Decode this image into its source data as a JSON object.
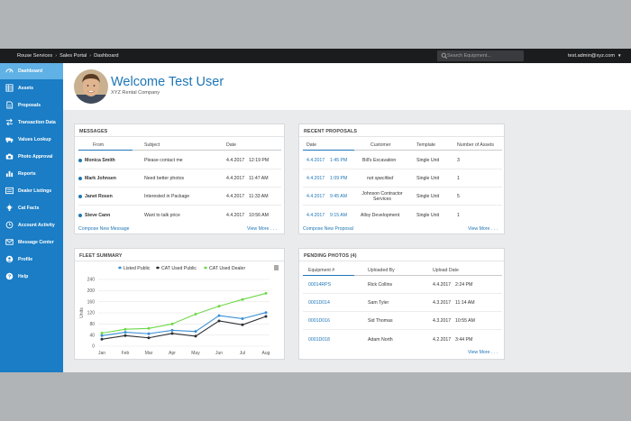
{
  "topbar": {
    "crumbs": [
      "Rouse Services",
      "Sales Portal",
      "Dashboard"
    ],
    "search_placeholder": "Search Equipment...",
    "user": "test.admin@xyz.com"
  },
  "sidebar": {
    "items": [
      {
        "label": "Dashboard",
        "icon": "speedometer-icon",
        "active": true
      },
      {
        "label": "Assets",
        "icon": "grid-icon",
        "active": false
      },
      {
        "label": "Proposals",
        "icon": "document-icon",
        "active": false
      },
      {
        "label": "Transaction Data",
        "icon": "transfer-icon",
        "active": false
      },
      {
        "label": "Values Lookup",
        "icon": "truck-icon",
        "active": false
      },
      {
        "label": "Photo Approval",
        "icon": "camera-icon",
        "active": false
      },
      {
        "label": "Reports",
        "icon": "bar-chart-icon",
        "active": false
      },
      {
        "label": "Dealer Listings",
        "icon": "list-icon",
        "active": false
      },
      {
        "label": "Cat Facts",
        "icon": "lightbulb-icon",
        "active": false
      },
      {
        "label": "Account Activity",
        "icon": "history-icon",
        "active": false
      },
      {
        "label": "Message Center",
        "icon": "envelope-icon",
        "active": false
      },
      {
        "label": "Profile",
        "icon": "user-icon",
        "active": false
      },
      {
        "label": "Help",
        "icon": "help-icon",
        "active": false
      }
    ]
  },
  "header": {
    "welcome": "Welcome Test User",
    "company": "XYZ Rental Company"
  },
  "messages": {
    "title": "MESSAGES",
    "columns": [
      "From",
      "Subject",
      "Date"
    ],
    "rows": [
      {
        "from": "Monica Smith",
        "subject": "Please contact me",
        "date": "4.4.2017",
        "time": "12:19 PM"
      },
      {
        "from": "Mark Johnsen",
        "subject": "Need better photos",
        "date": "4.4.2017",
        "time": "11:47 AM"
      },
      {
        "from": "Janet Rosen",
        "subject": "Interested in Package",
        "date": "4.4.2017",
        "time": "11:33 AM"
      },
      {
        "from": "Steve Cann",
        "subject": "Want to talk price",
        "date": "4.4.2017",
        "time": "10:56 AM"
      }
    ],
    "compose": "Compose New Message",
    "view_more": "View More . . ."
  },
  "proposals": {
    "title": "RECENT PROPOSALS",
    "columns": [
      "Date",
      "Customer",
      "Template",
      "Number of Assets"
    ],
    "rows": [
      {
        "date": "4.4.2017",
        "time": "1:45 PM",
        "customer": "Bill's Excavation",
        "template": "Single Unit",
        "assets": "3"
      },
      {
        "date": "4.4.2017",
        "time": "1:09 PM",
        "customer": "not specified",
        "template": "Single Unit",
        "assets": "1"
      },
      {
        "date": "4.4.2017",
        "time": "9:45 AM",
        "customer": "Johnson Contractor Services",
        "template": "Single Unit",
        "assets": "5"
      },
      {
        "date": "4.4.2017",
        "time": "9:15 AM",
        "customer": "Alloy Development",
        "template": "Single Unit",
        "assets": "1"
      }
    ],
    "compose": "Compose New Proposal",
    "view_more": "View More . . ."
  },
  "fleet": {
    "title": "FLEET SUMMARY"
  },
  "photos": {
    "title": "PENDING PHOTOS (4)",
    "columns": [
      "Equipment #",
      "Uploaded By",
      "Upload Date"
    ],
    "rows": [
      {
        "equipment": "00014RPS",
        "by": "Rick Collins",
        "date": "4.4.2017",
        "time": "2:24 PM"
      },
      {
        "equipment": "0001D014",
        "by": "Sam Tyler",
        "date": "4.3.2017",
        "time": "11:14 AM"
      },
      {
        "equipment": "0001D016",
        "by": "Sid Thomas",
        "date": "4.3.2017",
        "time": "10:55 AM"
      },
      {
        "equipment": "0001D018",
        "by": "Adam North",
        "date": "4.2.2017",
        "time": "3:44 PM"
      }
    ],
    "view_more": "View More . . ."
  },
  "colors": {
    "accent": "#1e76b7",
    "sidebar": "#1a7dc5",
    "sidebar_active": "#5fb1e6",
    "topbar": "#1b1c1e"
  },
  "chart_data": {
    "type": "line",
    "title": "FLEET SUMMARY",
    "xlabel": "",
    "ylabel": "Units",
    "categories": [
      "Jan",
      "Feb",
      "Mar",
      "Apr",
      "May",
      "Jun",
      "Jul",
      "Aug"
    ],
    "yticks": [
      0,
      40,
      80,
      120,
      160,
      200,
      240
    ],
    "ylim": [
      0,
      240
    ],
    "grid": true,
    "legend": "top",
    "series": [
      {
        "name": "Listed Public",
        "color": "#3b8fd6",
        "values": [
          38,
          50,
          45,
          57,
          53,
          110,
          99,
          121
        ]
      },
      {
        "name": "CAT Used Public",
        "color": "#2b2d31",
        "values": [
          25,
          38,
          30,
          46,
          36,
          91,
          77,
          107
        ]
      },
      {
        "name": "CAT Used Dealer",
        "color": "#6fd84a",
        "values": [
          47,
          61,
          64,
          80,
          115,
          144,
          168,
          190
        ]
      }
    ]
  }
}
